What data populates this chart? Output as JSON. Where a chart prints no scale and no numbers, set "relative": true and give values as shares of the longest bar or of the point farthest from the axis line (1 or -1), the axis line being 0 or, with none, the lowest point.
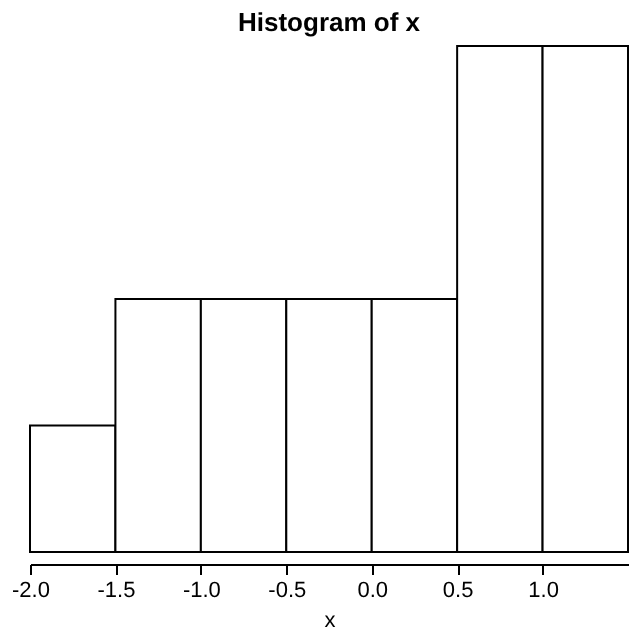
{
  "chart_data": {
    "type": "bar",
    "title": "Histogram of x",
    "xlabel": "x",
    "x": [
      -1.75,
      -1.25,
      -0.75,
      -0.25,
      0.25,
      0.75,
      1.25
    ],
    "values": [
      0.25,
      0.5,
      0.5,
      0.5,
      0.5,
      1,
      1
    ],
    "relative": true,
    "xlim": [
      -2.0,
      1.5
    ],
    "xticks": [
      {
        "value": -2.0,
        "label": "-2.0"
      },
      {
        "value": -1.5,
        "label": "-1.5"
      },
      {
        "value": -1.0,
        "label": "-1.0"
      },
      {
        "value": -0.5,
        "label": "-0.5"
      },
      {
        "value": 0.0,
        "label": "0.0"
      },
      {
        "value": 0.5,
        "label": "0.5"
      },
      {
        "value": 1.0,
        "label": "1.0"
      }
    ],
    "color": "#ffffff",
    "grid": false
  }
}
